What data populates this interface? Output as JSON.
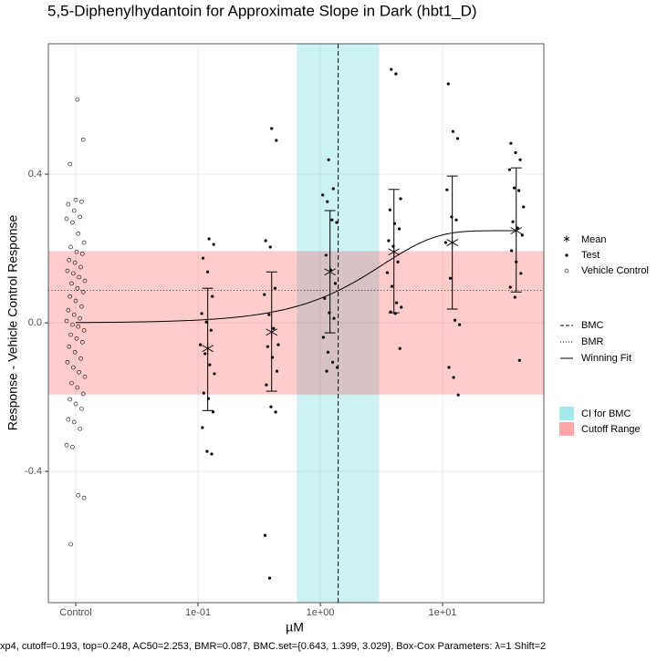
{
  "chart_data": {
    "type": "scatter",
    "title": "5,5-Diphenylhydantoin for Approximate Slope in Dark (hbt1_D)",
    "x_label": "µM",
    "y_label": "Response - Vehicle Control Response",
    "caption": "xp4, cutoff=0.193, top=0.248, AC50=2.253, BMR=0.087, BMC.set={0.643, 1.399, 3.029}, Box-Cox Parameters: λ=1 Shift=2",
    "xscale": "log",
    "xlim": [
      0.00597,
      67.3
    ],
    "ylim": [
      -0.753,
      0.751
    ],
    "xticks": [
      {
        "value": 0.01,
        "label": "Control"
      },
      {
        "value": 0.1,
        "label": "1e-01"
      },
      {
        "value": 1,
        "label": "1e+00"
      },
      {
        "value": 10,
        "label": "1e+01"
      }
    ],
    "yticks": [
      -0.4,
      {
        "value": 0,
        "label": "0.0"
      },
      0.4
    ],
    "grid": true,
    "vehicle": {
      "name": "Vehicle Control",
      "x": 0.01,
      "values": [
        0.601,
        0.493,
        0.427,
        0.331,
        0.326,
        0.319,
        0.302,
        0.285,
        0.28,
        0.27,
        0.24,
        0.216,
        0.204,
        0.191,
        0.186,
        0.169,
        0.162,
        0.15,
        0.14,
        0.133,
        0.123,
        0.113,
        0.106,
        0.093,
        0.083,
        0.071,
        0.059,
        0.044,
        0.034,
        0.022,
        0.012,
        0.005,
        -0.005,
        -0.01,
        -0.02,
        -0.032,
        -0.042,
        -0.052,
        -0.064,
        -0.079,
        -0.096,
        -0.106,
        -0.12,
        -0.133,
        -0.145,
        -0.162,
        -0.174,
        -0.191,
        -0.206,
        -0.218,
        -0.231,
        -0.26,
        -0.267,
        -0.285,
        -0.329,
        -0.334,
        -0.464,
        -0.471,
        -0.596
      ]
    },
    "test": {
      "name": "Test",
      "groups": [
        {
          "x": 0.12,
          "values": [
            0.226,
            0.211,
            0.174,
            0.137,
            0.071,
            0.025,
            0.002,
            -0.02,
            -0.059,
            -0.083,
            -0.113,
            -0.137,
            -0.189,
            -0.204,
            -0.24,
            -0.282,
            -0.346,
            -0.353
          ]
        },
        {
          "x": 0.4,
          "values": [
            0.523,
            0.491,
            0.221,
            0.204,
            0.093,
            0.076,
            0.022,
            -0.015,
            -0.059,
            -0.064,
            -0.093,
            -0.13,
            -0.167,
            -0.226,
            -0.24,
            -0.572,
            -0.687
          ]
        },
        {
          "x": 1.2,
          "values": [
            0.439,
            0.361,
            0.344,
            0.326,
            0.277,
            0.27,
            0.182,
            0.142,
            0.106,
            0.066,
            0.027,
            0.012,
            -0.039,
            -0.079,
            -0.106,
            -0.12,
            -0.13
          ]
        },
        {
          "x": 4,
          "values": [
            0.682,
            0.67,
            0.334,
            0.304,
            0.267,
            0.253,
            0.221,
            0.206,
            0.164,
            0.135,
            0.098,
            0.054,
            0.042,
            0.029,
            0.025,
            -0.069
          ]
        },
        {
          "x": 12,
          "values": [
            0.643,
            0.515,
            0.496,
            0.358,
            0.285,
            0.277,
            0.216,
            0.12,
            0.007,
            -0.005,
            -0.12,
            -0.147,
            -0.194
          ]
        },
        {
          "x": 40,
          "values": [
            0.483,
            0.458,
            0.439,
            0.412,
            0.363,
            0.356,
            0.312,
            0.272,
            0.255,
            0.236,
            0.194,
            0.164,
            0.133,
            0.096,
            0.069,
            -0.101
          ]
        }
      ]
    },
    "mean": {
      "name": "Mean",
      "x": [
        0.12,
        0.4,
        1.2,
        4,
        12,
        40
      ],
      "values": [
        -0.069,
        -0.025,
        0.137,
        0.191,
        0.216,
        0.248
      ],
      "lower": [
        -0.236,
        -0.184,
        -0.027,
        0.027,
        0.037,
        0.083
      ],
      "upper": [
        0.093,
        0.137,
        0.302,
        0.359,
        0.395,
        0.417
      ]
    },
    "cutoff": {
      "name": "Cutoff Range",
      "range": [
        -0.193,
        0.193
      ],
      "color": "#ff0000"
    },
    "bmr": {
      "name": "BMR",
      "value": 0.087
    },
    "bmc": {
      "name": "BMC",
      "value": 1.399,
      "ci_name": "CI for BMC",
      "ci": [
        0.643,
        3.029
      ],
      "ci_color": "#00c0c8"
    },
    "fit": {
      "name": "Winning Fit",
      "top": 0.248,
      "ac50": 2.253
    }
  }
}
